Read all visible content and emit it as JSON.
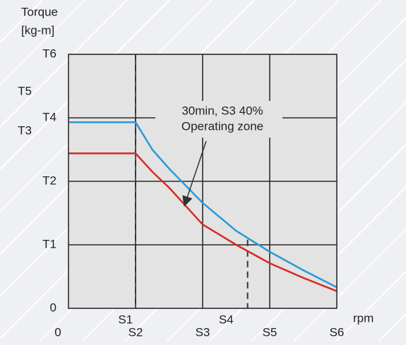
{
  "chart_data": {
    "type": "line",
    "y_label_lines": [
      "Torque",
      "[kg-m]"
    ],
    "x_label": "rpm",
    "annotation": [
      "30min, S3 40%",
      "Operating zone"
    ],
    "xlim": [
      0,
      4
    ],
    "ylim": [
      0,
      4
    ],
    "xticks": [
      0,
      {
        "value": 0.85,
        "label": "S1"
      },
      {
        "value": 1,
        "label": "S2"
      },
      {
        "value": 2,
        "label": "S3"
      },
      {
        "value": 2.35,
        "label": "S4"
      },
      {
        "value": 3,
        "label": "S5"
      },
      {
        "value": 4,
        "label": "S6"
      }
    ],
    "yticks": [
      0,
      {
        "value": 1,
        "label": "T1"
      },
      {
        "value": 2,
        "label": "T2"
      },
      {
        "value": 2.79,
        "label": "T3"
      },
      {
        "value": 3,
        "label": "T4"
      },
      {
        "value": 3.41,
        "label": "T5"
      },
      {
        "value": 4,
        "label": "T6"
      }
    ],
    "grid": true,
    "x": [
      0,
      1,
      1.25,
      1.5,
      2,
      2.5,
      3,
      3.5,
      4
    ],
    "series": [
      {
        "color": "#2a9ad8",
        "values": [
          2.93,
          2.93,
          2.5,
          2.2,
          1.66,
          1.22,
          0.89,
          0.6,
          0.33
        ]
      },
      {
        "color": "#d62b26",
        "values": [
          2.44,
          2.44,
          2.15,
          1.9,
          1.32,
          1.0,
          0.71,
          0.48,
          0.27
        ]
      }
    ],
    "dashed_lines": [
      {
        "x": 1,
        "y": 4
      },
      {
        "x": 2.67,
        "y": 1.08
      }
    ]
  }
}
